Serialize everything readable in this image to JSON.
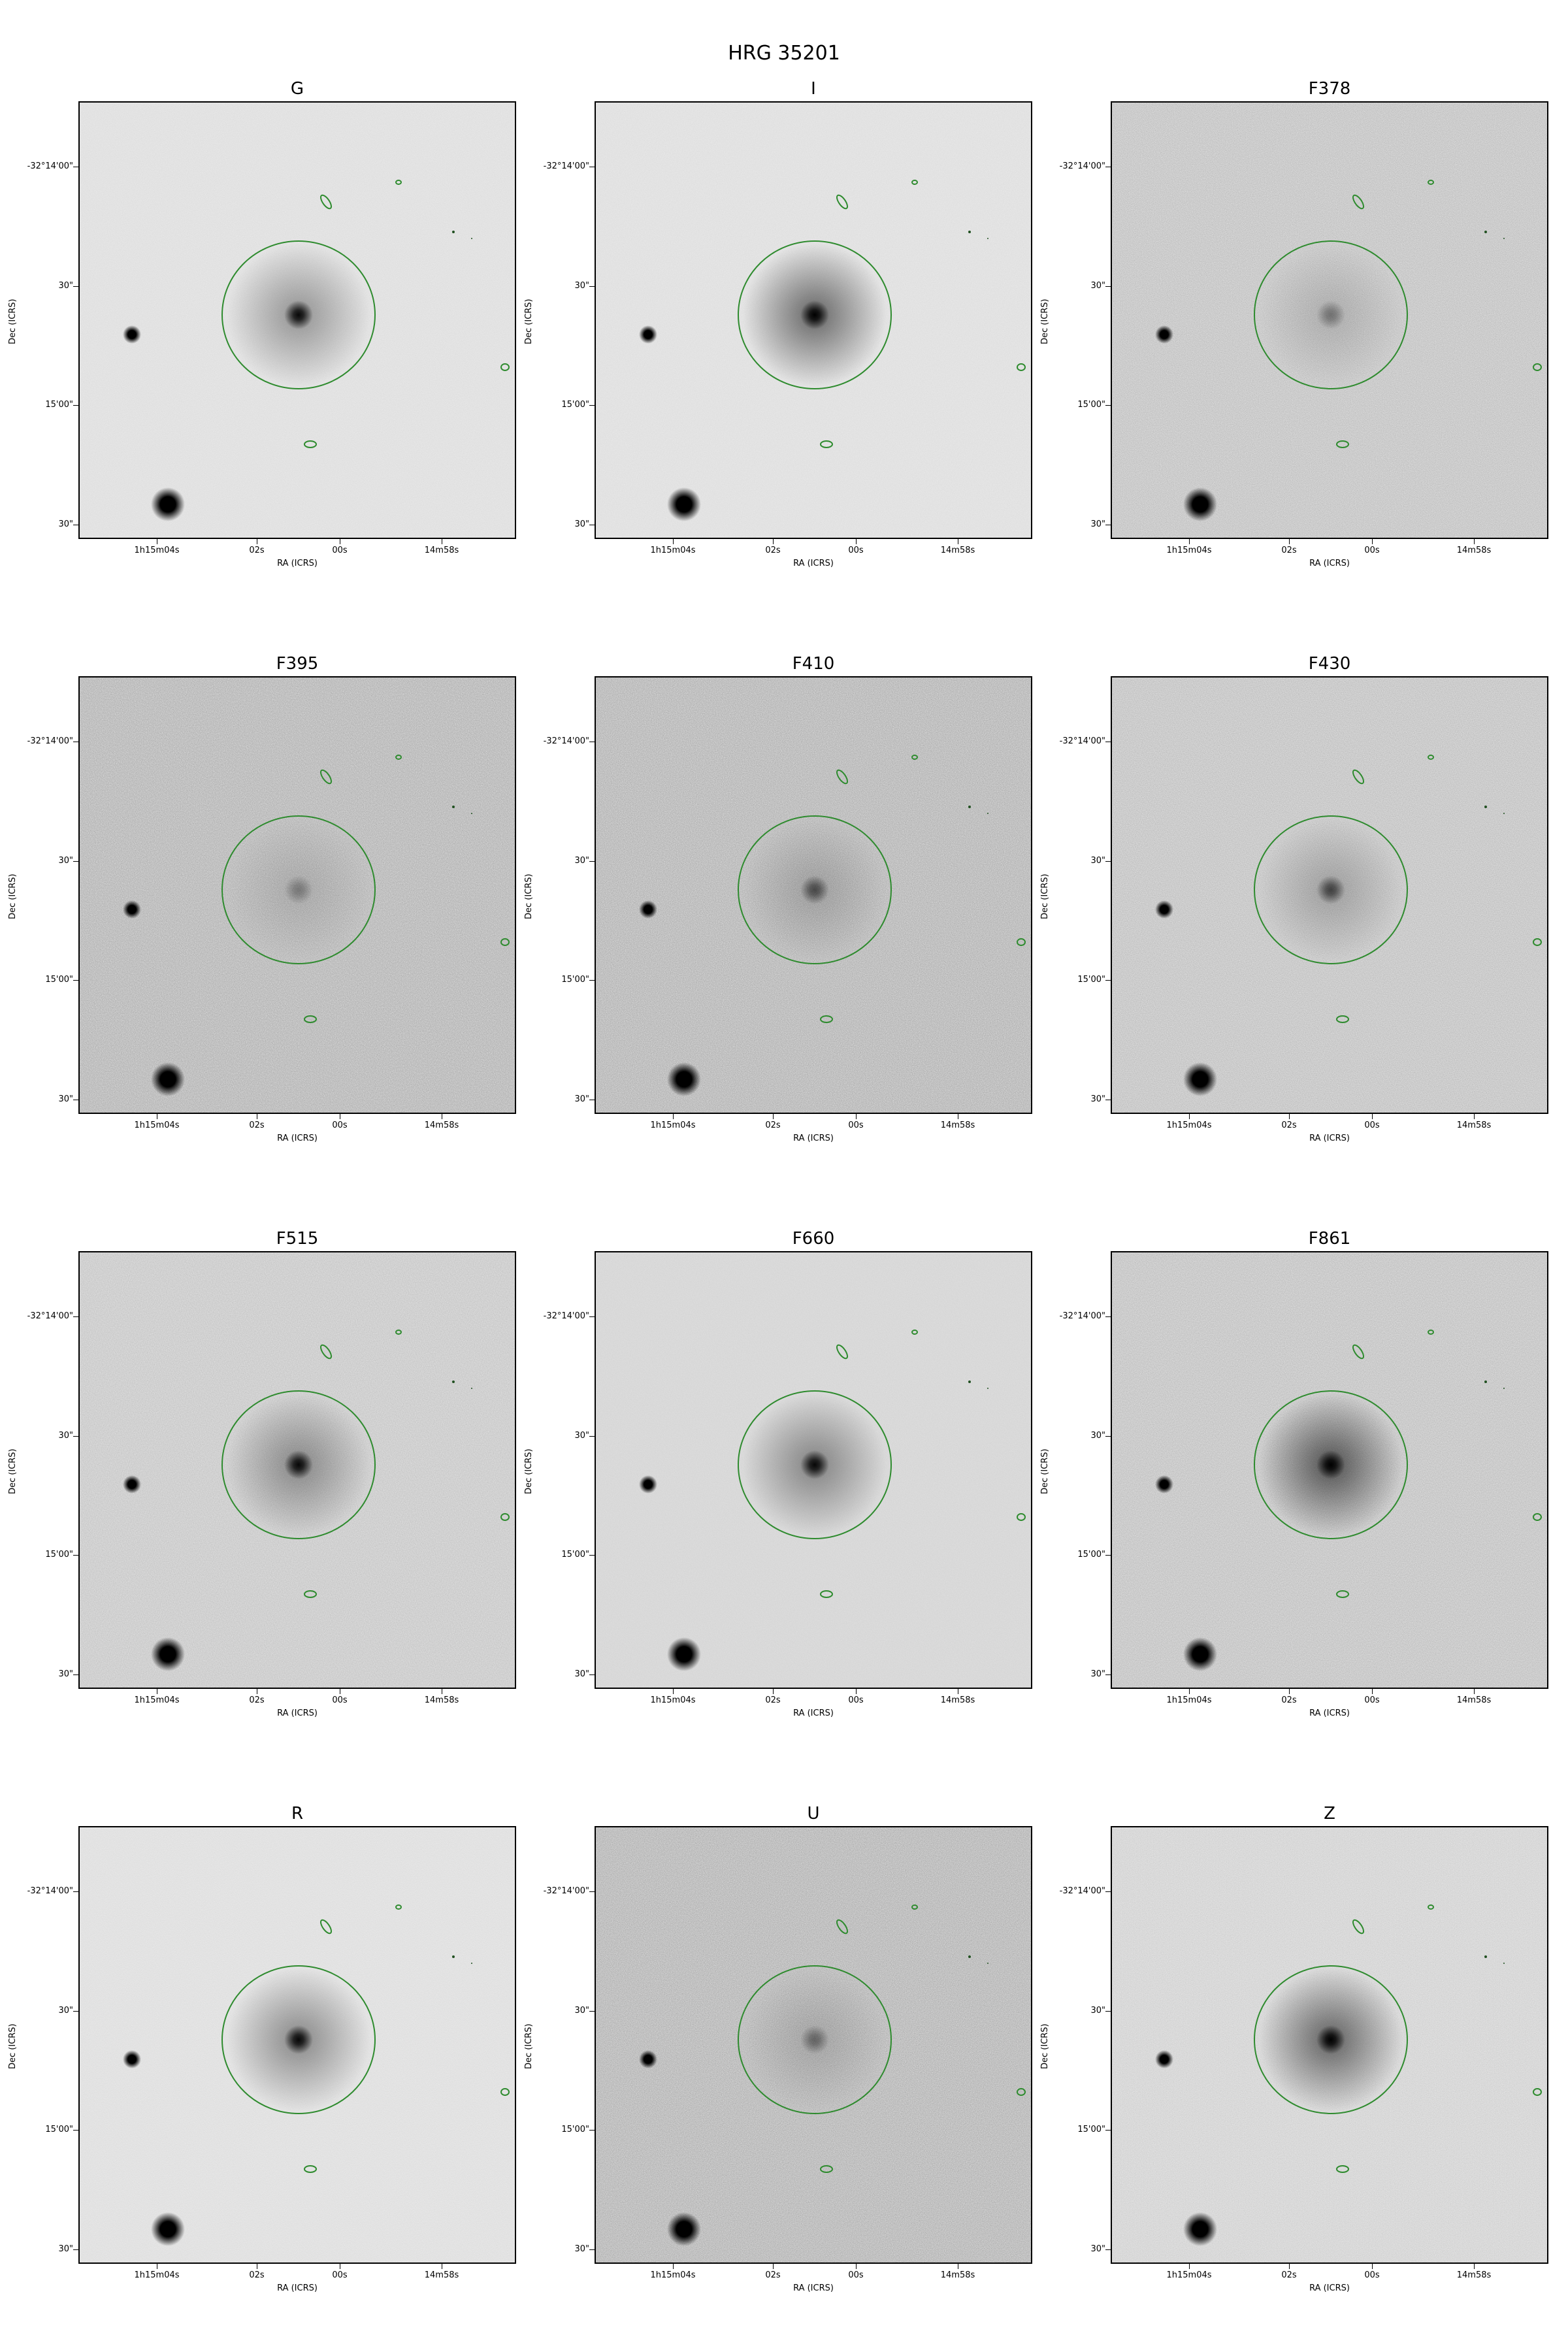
{
  "figure_title": "HRG 35201",
  "axes": {
    "xlabel": "RA (ICRS)",
    "ylabel": "Dec (ICRS)",
    "yticks": [
      "-32°14'00\"",
      "30\"",
      "15'00\"",
      "30\""
    ],
    "xticks": [
      "1h15m04s",
      "02s",
      "00s",
      "14m58s"
    ]
  },
  "panels": [
    {
      "title": "G",
      "bg": "#ececec",
      "core": 0.95,
      "halo": 0.35,
      "noise": 0.1
    },
    {
      "title": "I",
      "bg": "#ececec",
      "core": 1.0,
      "halo": 0.55,
      "noise": 0.1
    },
    {
      "title": "F378",
      "bg": "#e8e8e8",
      "core": 0.35,
      "halo": 0.15,
      "noise": 0.3
    },
    {
      "title": "F395",
      "bg": "#e6e6e6",
      "core": 0.3,
      "halo": 0.12,
      "noise": 0.4
    },
    {
      "title": "F410",
      "bg": "#e6e6e6",
      "core": 0.55,
      "halo": 0.18,
      "noise": 0.4
    },
    {
      "title": "F430",
      "bg": "#e8e8e8",
      "core": 0.6,
      "halo": 0.22,
      "noise": 0.3
    },
    {
      "title": "F515",
      "bg": "#e8e8e8",
      "core": 0.95,
      "halo": 0.35,
      "noise": 0.25
    },
    {
      "title": "F660",
      "bg": "#e2e2e2",
      "core": 0.95,
      "halo": 0.4,
      "noise": 0.1
    },
    {
      "title": "F861",
      "bg": "#e8e8e8",
      "core": 1.0,
      "halo": 0.6,
      "noise": 0.3
    },
    {
      "title": "R",
      "bg": "#ececec",
      "core": 0.95,
      "halo": 0.4,
      "noise": 0.1
    },
    {
      "title": "U",
      "bg": "#e6e6e6",
      "core": 0.4,
      "halo": 0.15,
      "noise": 0.4
    },
    {
      "title": "Z",
      "bg": "#ececec",
      "core": 1.0,
      "halo": 0.55,
      "noise": 0.2
    }
  ],
  "colors": {
    "aperture": "#2e8b2e",
    "star": "#000000"
  }
}
